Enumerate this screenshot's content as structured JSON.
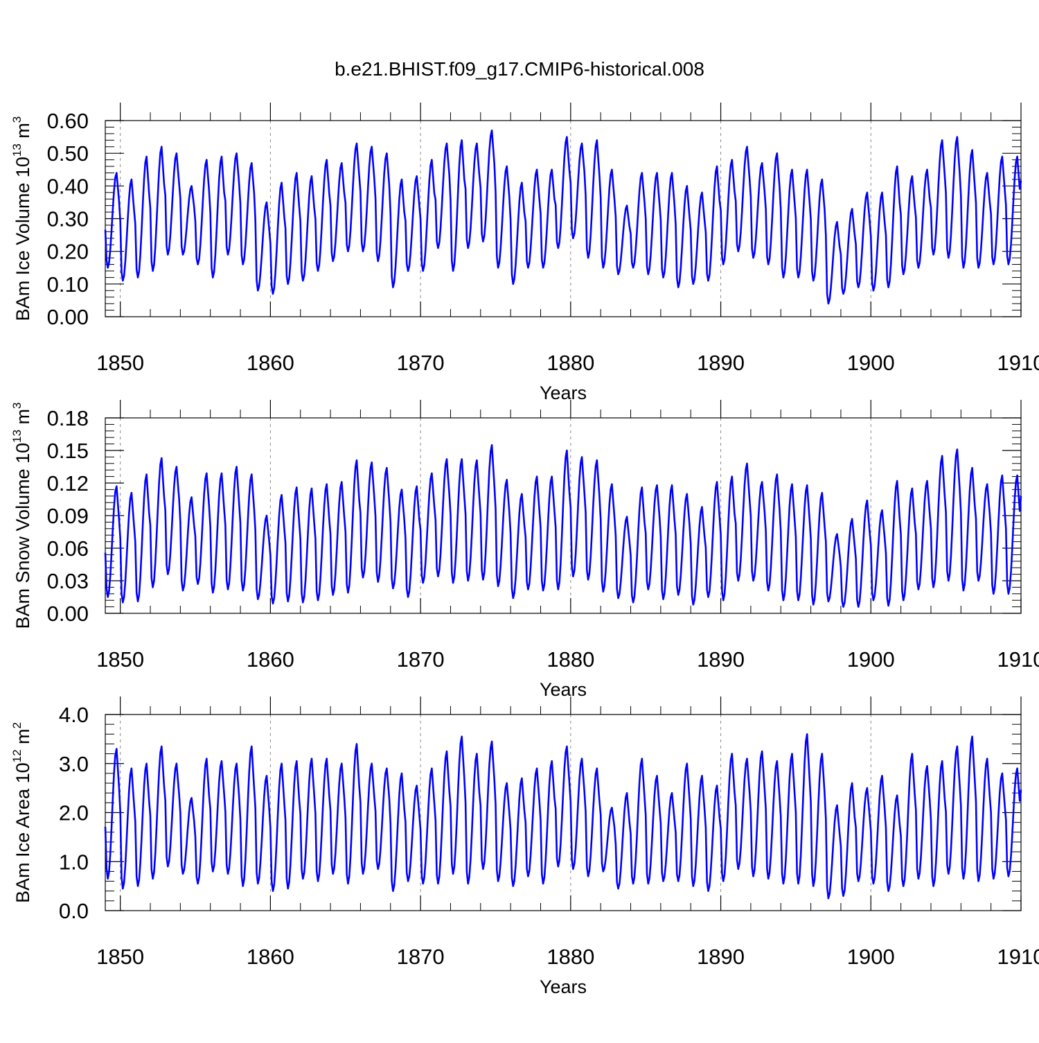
{
  "title": "b.e21.BHIST.f09_g17.CMIP6-historical.008",
  "colors": {
    "series": "#0000ff",
    "axis": "#000000",
    "grid": "#888888"
  },
  "chart_data": [
    {
      "type": "line",
      "ylabel": "BAm Ice Volume",
      "ylabel_unit_base": "10",
      "ylabel_unit_exp": "13",
      "ylabel_unit_tail": "m",
      "ylabel_unit_tail_exp": "3",
      "xlabel": "Years",
      "xlim": [
        1849,
        1910
      ],
      "ylim": [
        0,
        0.6
      ],
      "xticks": [
        1850,
        1860,
        1870,
        1880,
        1890,
        1900,
        1910
      ],
      "xtick_labels": [
        "1850",
        "1860",
        "1870",
        "1880",
        "1890",
        "1900",
        "1910"
      ],
      "yticks": [
        0.0,
        0.1,
        0.2,
        0.3,
        0.4,
        0.5,
        0.6
      ],
      "ytick_labels": [
        "0.00",
        "0.10",
        "0.20",
        "0.30",
        "0.40",
        "0.50",
        "0.60"
      ],
      "series": [
        {
          "name": "BAm Ice Volume",
          "years": [
            1849,
            1850,
            1851,
            1852,
            1853,
            1854,
            1855,
            1856,
            1857,
            1858,
            1859,
            1860,
            1861,
            1862,
            1863,
            1864,
            1865,
            1866,
            1867,
            1868,
            1869,
            1870,
            1871,
            1872,
            1873,
            1874,
            1875,
            1876,
            1877,
            1878,
            1879,
            1880,
            1881,
            1882,
            1883,
            1884,
            1885,
            1886,
            1887,
            1888,
            1889,
            1890,
            1891,
            1892,
            1893,
            1894,
            1895,
            1896,
            1897,
            1898,
            1899,
            1900,
            1901,
            1902,
            1903,
            1904,
            1905,
            1906,
            1907,
            1908,
            1909
          ],
          "annual_max": [
            0.44,
            0.42,
            0.49,
            0.52,
            0.5,
            0.4,
            0.48,
            0.49,
            0.5,
            0.47,
            0.35,
            0.41,
            0.44,
            0.43,
            0.48,
            0.47,
            0.53,
            0.52,
            0.5,
            0.42,
            0.43,
            0.48,
            0.53,
            0.54,
            0.53,
            0.57,
            0.46,
            0.41,
            0.45,
            0.45,
            0.55,
            0.53,
            0.54,
            0.45,
            0.34,
            0.44,
            0.44,
            0.44,
            0.4,
            0.38,
            0.46,
            0.48,
            0.52,
            0.47,
            0.5,
            0.45,
            0.45,
            0.42,
            0.29,
            0.33,
            0.38,
            0.38,
            0.46,
            0.43,
            0.45,
            0.54,
            0.55,
            0.51,
            0.44,
            0.49,
            0.49
          ],
          "annual_min": [
            0.15,
            0.11,
            0.12,
            0.14,
            0.19,
            0.19,
            0.16,
            0.12,
            0.19,
            0.16,
            0.08,
            0.07,
            0.1,
            0.11,
            0.14,
            0.17,
            0.2,
            0.2,
            0.17,
            0.09,
            0.14,
            0.14,
            0.21,
            0.14,
            0.21,
            0.23,
            0.15,
            0.1,
            0.15,
            0.15,
            0.21,
            0.24,
            0.18,
            0.15,
            0.13,
            0.15,
            0.13,
            0.12,
            0.09,
            0.1,
            0.11,
            0.16,
            0.2,
            0.18,
            0.16,
            0.12,
            0.12,
            0.11,
            0.04,
            0.07,
            0.09,
            0.08,
            0.09,
            0.13,
            0.15,
            0.19,
            0.18,
            0.15,
            0.15,
            0.16,
            0.16
          ]
        }
      ]
    },
    {
      "type": "line",
      "ylabel": "BAm Snow Volume",
      "ylabel_unit_base": "10",
      "ylabel_unit_exp": "13",
      "ylabel_unit_tail": "m",
      "ylabel_unit_tail_exp": "3",
      "xlabel": "Years",
      "xlim": [
        1849,
        1910
      ],
      "ylim": [
        0,
        0.18
      ],
      "xticks": [
        1850,
        1860,
        1870,
        1880,
        1890,
        1900,
        1910
      ],
      "xtick_labels": [
        "1850",
        "1860",
        "1870",
        "1880",
        "1890",
        "1900",
        "1910"
      ],
      "yticks": [
        0.0,
        0.03,
        0.06,
        0.09,
        0.12,
        0.15,
        0.18
      ],
      "ytick_labels": [
        "0.00",
        "0.03",
        "0.06",
        "0.09",
        "0.12",
        "0.15",
        "0.18"
      ],
      "series": [
        {
          "name": "BAm Snow Volume",
          "years": [
            1849,
            1850,
            1851,
            1852,
            1853,
            1854,
            1855,
            1856,
            1857,
            1858,
            1859,
            1860,
            1861,
            1862,
            1863,
            1864,
            1865,
            1866,
            1867,
            1868,
            1869,
            1870,
            1871,
            1872,
            1873,
            1874,
            1875,
            1876,
            1877,
            1878,
            1879,
            1880,
            1881,
            1882,
            1883,
            1884,
            1885,
            1886,
            1887,
            1888,
            1889,
            1890,
            1891,
            1892,
            1893,
            1894,
            1895,
            1896,
            1897,
            1898,
            1899,
            1900,
            1901,
            1902,
            1903,
            1904,
            1905,
            1906,
            1907,
            1908,
            1909
          ],
          "annual_max": [
            0.117,
            0.111,
            0.128,
            0.143,
            0.135,
            0.107,
            0.129,
            0.129,
            0.135,
            0.128,
            0.09,
            0.109,
            0.116,
            0.115,
            0.119,
            0.121,
            0.141,
            0.139,
            0.134,
            0.114,
            0.117,
            0.129,
            0.142,
            0.142,
            0.141,
            0.155,
            0.123,
            0.11,
            0.126,
            0.126,
            0.15,
            0.144,
            0.141,
            0.119,
            0.089,
            0.116,
            0.118,
            0.118,
            0.11,
            0.098,
            0.121,
            0.126,
            0.138,
            0.121,
            0.128,
            0.119,
            0.118,
            0.111,
            0.073,
            0.087,
            0.104,
            0.095,
            0.122,
            0.115,
            0.122,
            0.145,
            0.151,
            0.134,
            0.119,
            0.127,
            0.127
          ],
          "annual_min": [
            0.015,
            0.01,
            0.011,
            0.024,
            0.036,
            0.021,
            0.027,
            0.019,
            0.022,
            0.021,
            0.013,
            0.009,
            0.011,
            0.01,
            0.012,
            0.017,
            0.019,
            0.033,
            0.029,
            0.023,
            0.015,
            0.028,
            0.034,
            0.028,
            0.03,
            0.031,
            0.025,
            0.014,
            0.022,
            0.021,
            0.022,
            0.034,
            0.031,
            0.02,
            0.014,
            0.01,
            0.022,
            0.013,
            0.017,
            0.008,
            0.015,
            0.012,
            0.03,
            0.03,
            0.021,
            0.012,
            0.012,
            0.008,
            0.011,
            0.006,
            0.006,
            0.012,
            0.007,
            0.012,
            0.022,
            0.024,
            0.03,
            0.021,
            0.03,
            0.018,
            0.018
          ]
        }
      ]
    },
    {
      "type": "line",
      "ylabel": "BAm Ice Area",
      "ylabel_unit_base": "10",
      "ylabel_unit_exp": "12",
      "ylabel_unit_tail": "m",
      "ylabel_unit_tail_exp": "2",
      "xlabel": "Years",
      "xlim": [
        1849,
        1910
      ],
      "ylim": [
        0,
        4.0
      ],
      "xticks": [
        1850,
        1860,
        1870,
        1880,
        1890,
        1900,
        1910
      ],
      "xtick_labels": [
        "1850",
        "1860",
        "1870",
        "1880",
        "1890",
        "1900",
        "1910"
      ],
      "yticks": [
        0.0,
        1.0,
        2.0,
        3.0,
        4.0
      ],
      "ytick_labels": [
        "0.0",
        "1.0",
        "2.0",
        "3.0",
        "4.0"
      ],
      "series": [
        {
          "name": "BAm Ice Area",
          "years": [
            1849,
            1850,
            1851,
            1852,
            1853,
            1854,
            1855,
            1856,
            1857,
            1858,
            1859,
            1860,
            1861,
            1862,
            1863,
            1864,
            1865,
            1866,
            1867,
            1868,
            1869,
            1870,
            1871,
            1872,
            1873,
            1874,
            1875,
            1876,
            1877,
            1878,
            1879,
            1880,
            1881,
            1882,
            1883,
            1884,
            1885,
            1886,
            1887,
            1888,
            1889,
            1890,
            1891,
            1892,
            1893,
            1894,
            1895,
            1896,
            1897,
            1898,
            1899,
            1900,
            1901,
            1902,
            1903,
            1904,
            1905,
            1906,
            1907,
            1908,
            1909
          ],
          "annual_max": [
            3.3,
            2.9,
            3.0,
            3.35,
            3.0,
            2.3,
            3.1,
            3.05,
            3.0,
            3.35,
            2.75,
            3.0,
            3.05,
            3.1,
            3.1,
            3.0,
            3.4,
            3.0,
            2.9,
            2.8,
            2.55,
            2.9,
            3.25,
            3.55,
            3.2,
            3.45,
            2.6,
            2.7,
            2.9,
            3.05,
            3.35,
            3.1,
            2.9,
            2.1,
            2.4,
            3.1,
            2.75,
            2.4,
            3.0,
            2.75,
            2.55,
            3.2,
            3.1,
            3.25,
            3.05,
            3.2,
            3.6,
            3.2,
            2.15,
            2.6,
            2.5,
            2.75,
            2.35,
            3.2,
            2.95,
            3.05,
            3.35,
            3.55,
            3.1,
            2.8,
            2.9
          ],
          "annual_min": [
            0.65,
            0.45,
            0.5,
            0.65,
            0.9,
            0.75,
            0.55,
            0.8,
            0.75,
            0.5,
            0.55,
            0.4,
            0.45,
            0.65,
            0.6,
            0.75,
            0.55,
            0.75,
            0.85,
            0.4,
            0.6,
            0.55,
            0.55,
            0.75,
            0.55,
            0.85,
            0.6,
            0.5,
            0.7,
            0.55,
            0.9,
            0.85,
            0.7,
            0.8,
            0.45,
            0.55,
            0.55,
            0.6,
            0.6,
            0.5,
            0.4,
            0.6,
            0.85,
            0.7,
            0.65,
            0.55,
            0.55,
            0.5,
            0.25,
            0.3,
            0.6,
            0.55,
            0.4,
            0.5,
            0.65,
            0.5,
            0.75,
            0.65,
            0.6,
            0.65,
            0.7
          ]
        }
      ]
    }
  ]
}
